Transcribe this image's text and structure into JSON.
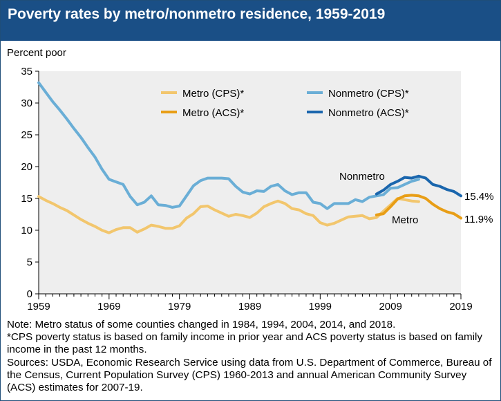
{
  "chart_data": {
    "type": "line",
    "title": "Poverty rates by metro/nonmetro residence, 1959-2019",
    "ylabel": "Percent poor",
    "xlabel": "",
    "xlim": [
      1959,
      2019
    ],
    "ylim": [
      0,
      35
    ],
    "x_ticks": [
      "1959",
      "1969",
      "1979",
      "1989",
      "1999",
      "2009",
      "2019"
    ],
    "y_ticks": [
      "0",
      "5",
      "10",
      "15",
      "20",
      "25",
      "30",
      "35"
    ],
    "series": [
      {
        "name": "Metro (CPS)*",
        "color": "#f2c66d",
        "x": [
          1959,
          1960,
          1961,
          1962,
          1963,
          1964,
          1965,
          1966,
          1967,
          1968,
          1969,
          1970,
          1971,
          1972,
          1973,
          1974,
          1975,
          1976,
          1977,
          1978,
          1979,
          1980,
          1981,
          1982,
          1983,
          1984,
          1985,
          1986,
          1987,
          1988,
          1989,
          1990,
          1991,
          1992,
          1993,
          1994,
          1995,
          1996,
          1997,
          1998,
          1999,
          2000,
          2001,
          2002,
          2003,
          2004,
          2005,
          2006,
          2007,
          2008,
          2009,
          2010,
          2011,
          2012,
          2013
        ],
        "values": [
          15.3,
          14.7,
          14.2,
          13.6,
          13.1,
          12.4,
          11.7,
          11.1,
          10.6,
          10.0,
          9.6,
          10.1,
          10.4,
          10.4,
          9.7,
          10.2,
          10.8,
          10.6,
          10.3,
          10.3,
          10.7,
          11.9,
          12.6,
          13.7,
          13.8,
          13.2,
          12.7,
          12.2,
          12.5,
          12.3,
          12.0,
          12.7,
          13.7,
          14.2,
          14.6,
          14.2,
          13.4,
          13.2,
          12.6,
          12.3,
          11.2,
          10.8,
          11.1,
          11.6,
          12.1,
          12.2,
          12.3,
          11.8,
          12.0,
          13.0,
          14.0,
          15.0,
          14.8,
          14.6,
          14.5
        ]
      },
      {
        "name": "Nonmetro (CPS)*",
        "color": "#6aaed6",
        "x": [
          1959,
          1960,
          1961,
          1962,
          1963,
          1964,
          1965,
          1966,
          1967,
          1968,
          1969,
          1970,
          1971,
          1972,
          1973,
          1974,
          1975,
          1976,
          1977,
          1978,
          1979,
          1980,
          1981,
          1982,
          1983,
          1984,
          1985,
          1986,
          1987,
          1988,
          1989,
          1990,
          1991,
          1992,
          1993,
          1994,
          1995,
          1996,
          1997,
          1998,
          1999,
          2000,
          2001,
          2002,
          2003,
          2004,
          2005,
          2006,
          2007,
          2008,
          2009,
          2010,
          2011,
          2012,
          2013
        ],
        "values": [
          33.2,
          31.7,
          30.2,
          28.9,
          27.5,
          26.0,
          24.6,
          23.0,
          21.5,
          19.6,
          18.0,
          17.6,
          17.2,
          15.3,
          14.0,
          14.4,
          15.4,
          14.0,
          13.9,
          13.6,
          13.8,
          15.4,
          17.0,
          17.8,
          18.2,
          18.2,
          18.2,
          18.1,
          16.9,
          16.0,
          15.7,
          16.2,
          16.1,
          16.9,
          17.2,
          16.2,
          15.6,
          15.9,
          15.9,
          14.4,
          14.2,
          13.4,
          14.2,
          14.2,
          14.2,
          14.8,
          14.5,
          15.2,
          15.4,
          15.6,
          16.6,
          16.7,
          17.2,
          17.7,
          18.0
        ]
      },
      {
        "name": "Metro (ACS)*",
        "color": "#e89e16",
        "x": [
          2007,
          2008,
          2009,
          2010,
          2011,
          2012,
          2013,
          2014,
          2015,
          2016,
          2017,
          2018,
          2019
        ],
        "values": [
          12.4,
          12.6,
          13.7,
          14.9,
          15.4,
          15.5,
          15.4,
          15.0,
          14.1,
          13.4,
          12.9,
          12.6,
          11.9
        ]
      },
      {
        "name": "Nonmetro (ACS)*",
        "color": "#1a66ad",
        "x": [
          2007,
          2008,
          2009,
          2010,
          2011,
          2012,
          2013,
          2014,
          2015,
          2016,
          2017,
          2018,
          2019
        ],
        "values": [
          15.7,
          16.3,
          17.2,
          17.7,
          18.3,
          18.2,
          18.5,
          18.2,
          17.2,
          16.9,
          16.4,
          16.1,
          15.4
        ]
      }
    ],
    "annotations": {
      "nonmetro_label": "Nonmetro",
      "metro_label": "Metro",
      "nonmetro_end_value": "15.4%",
      "metro_end_value": "11.9%"
    },
    "legend_position": "top-right",
    "grid": false
  },
  "notes": {
    "line1": "Note: Metro status of some counties changed in 1984, 1994, 2004, 2014, and 2018.",
    "line2": "*CPS poverty status is based on family income in prior year and ACS poverty status is based on family income in the past 12 months.",
    "line3": "Sources: USDA, Economic Research Service using data from U.S. Department of Commerce, Bureau of the Census, Current Population Survey (CPS) 1960-2013 and annual American Community Survey (ACS) estimates for 2007-19."
  }
}
